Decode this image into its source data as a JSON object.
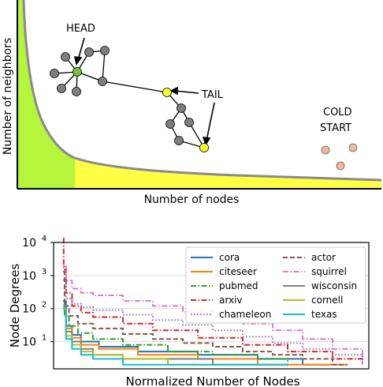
{
  "colors": {
    "head_region": "#b5f53c",
    "tail_region": "#ffff44",
    "curve": "#8a8a8a",
    "head_node": "#7cc243",
    "tail_node": "#ffff2a",
    "cold_node": "#f2b89a",
    "other_node": "#7f7f7f",
    "grid": "#dddddd"
  },
  "concept": {
    "ylabel": "Number of neighbors",
    "xlabel": "Number of nodes",
    "head_label": "HEAD",
    "tail_label": "TAIL",
    "cold_label_line1": "COLD",
    "cold_label_line2": "START"
  },
  "chart_data": {
    "type": "line",
    "xlabel": "Normalized Number of Nodes",
    "ylabel": "Node Degrees",
    "yscale": "log",
    "ylim": [
      1.5,
      10000
    ],
    "xlim": [
      0,
      1
    ],
    "yticks": [
      {
        "value": 10,
        "base": "10",
        "exp": "1"
      },
      {
        "value": 100,
        "base": "10",
        "exp": "2"
      },
      {
        "value": 1000,
        "base": "10",
        "exp": "3"
      },
      {
        "value": 10000,
        "base": "10",
        "exp": "4"
      }
    ],
    "grid": true,
    "legend_position": "top-right",
    "series": [
      {
        "name": "cora",
        "color": "#1f77b4",
        "dash": "solid",
        "x": [
          0,
          0.01,
          0.03,
          0.06,
          0.12,
          0.25,
          0.45,
          0.65,
          0.8,
          0.9
        ],
        "y": [
          168,
          30,
          16,
          10,
          7,
          5,
          4,
          3,
          2,
          2
        ]
      },
      {
        "name": "citeseer",
        "color": "#ff7f0e",
        "dash": "solid",
        "x": [
          0,
          0.01,
          0.03,
          0.06,
          0.12,
          0.25,
          0.45,
          0.65,
          0.82,
          0.95
        ],
        "y": [
          99,
          25,
          13,
          8,
          6,
          4,
          3,
          2,
          2,
          2
        ]
      },
      {
        "name": "pubmed",
        "color": "#2ca02c",
        "dash": "dashdot",
        "x": [
          0,
          0.005,
          0.02,
          0.05,
          0.1,
          0.2,
          0.35,
          0.5,
          0.65,
          0.75
        ],
        "y": [
          171,
          60,
          30,
          18,
          12,
          8,
          5,
          4,
          3,
          2
        ]
      },
      {
        "name": "arxiv",
        "color": "#d62728",
        "dash": "dashdot",
        "x": [
          0,
          0.002,
          0.01,
          0.03,
          0.06,
          0.1,
          0.2,
          0.3,
          0.45,
          0.6,
          0.75,
          0.9,
          1.0
        ],
        "y": [
          13161,
          1500,
          300,
          120,
          75,
          55,
          35,
          22,
          13,
          8,
          5,
          3,
          2
        ]
      },
      {
        "name": "chameleon",
        "color": "#9467bd",
        "dash": "dotted",
        "x": [
          0,
          0.01,
          0.03,
          0.06,
          0.1,
          0.2,
          0.3,
          0.4,
          0.5,
          0.6,
          0.7,
          0.8,
          0.9,
          1.0
        ],
        "y": [
          733,
          200,
          140,
          110,
          90,
          65,
          45,
          32,
          22,
          14,
          9,
          6,
          4,
          2
        ]
      },
      {
        "name": "actor",
        "color": "#8c564b",
        "dash": "dashed",
        "x": [
          0,
          0.005,
          0.02,
          0.05,
          0.1,
          0.2,
          0.3,
          0.4,
          0.5,
          0.6,
          0.7,
          0.8,
          0.9,
          0.95
        ],
        "y": [
          1303,
          120,
          60,
          35,
          25,
          17,
          12,
          9,
          7,
          5,
          4,
          3,
          2,
          2
        ]
      },
      {
        "name": "squirrel",
        "color": "#e377c2",
        "dash": "dashdot",
        "x": [
          0,
          0.01,
          0.03,
          0.06,
          0.1,
          0.2,
          0.3,
          0.4,
          0.5,
          0.6,
          0.7,
          0.8,
          0.9,
          1.0
        ],
        "y": [
          1905,
          700,
          400,
          300,
          250,
          170,
          120,
          80,
          55,
          35,
          22,
          12,
          6,
          2
        ]
      },
      {
        "name": "wisconsin",
        "color": "#7f7f7f",
        "dash": "solid",
        "x": [
          0,
          0.01,
          0.03,
          0.06,
          0.1,
          0.2,
          0.35,
          0.5,
          0.65,
          0.75
        ],
        "y": [
          122,
          20,
          10,
          6,
          4,
          3,
          3,
          2,
          2,
          2
        ]
      },
      {
        "name": "cornell",
        "color": "#bcbd22",
        "dash": "solid",
        "x": [
          0,
          0.01,
          0.03,
          0.06,
          0.1,
          0.2,
          0.35,
          0.5,
          0.65,
          0.72
        ],
        "y": [
          94,
          15,
          8,
          5,
          4,
          3,
          2,
          2,
          2,
          2
        ]
      },
      {
        "name": "texas",
        "color": "#17becf",
        "dash": "solid",
        "x": [
          0,
          0.01,
          0.03,
          0.06,
          0.1,
          0.2,
          0.35,
          0.5,
          0.65,
          0.75
        ],
        "y": [
          104,
          12,
          6,
          4,
          3,
          2,
          2,
          2,
          2,
          2
        ]
      }
    ]
  }
}
